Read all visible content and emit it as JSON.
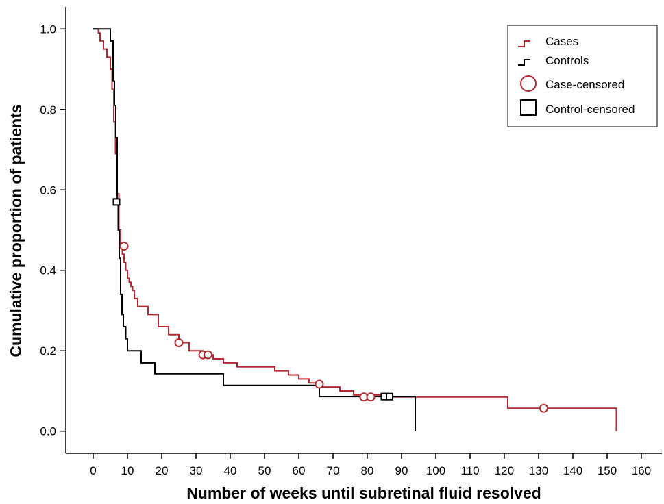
{
  "chart_data": {
    "type": "line",
    "title": "",
    "xlabel": "Number of weeks until subretinal fluid resolved",
    "ylabel": "Cumulative proportion of patients",
    "xlim": [
      -8,
      166
    ],
    "ylim": [
      -0.055,
      1.055
    ],
    "xticks": [
      0,
      10,
      20,
      30,
      40,
      50,
      60,
      70,
      80,
      90,
      100,
      110,
      120,
      130,
      140,
      150,
      160
    ],
    "yticks": [
      0.0,
      0.2,
      0.4,
      0.6,
      0.8,
      1.0
    ],
    "ytick_labels": [
      "0.0",
      "0.2",
      "0.4",
      "0.6",
      "0.8",
      "1.0"
    ],
    "grid": false,
    "legend_position": "top-right",
    "series": [
      {
        "name": "Cases",
        "color": "#b22a30",
        "step": true,
        "x": [
          0,
          1.5,
          2,
          3,
          4,
          5,
          5.5,
          6,
          6.5,
          7,
          7.5,
          8,
          8.5,
          9,
          9.5,
          10,
          10.5,
          11,
          11.5,
          12,
          13,
          16,
          19,
          22,
          25,
          28,
          32,
          35,
          38,
          42,
          48,
          53,
          57,
          60,
          63,
          67,
          72,
          76,
          80,
          83,
          85,
          94,
          121,
          152.7
        ],
        "y": [
          1.0,
          0.99,
          0.97,
          0.95,
          0.93,
          0.9,
          0.85,
          0.77,
          0.69,
          0.59,
          0.5,
          0.46,
          0.44,
          0.42,
          0.4,
          0.38,
          0.37,
          0.36,
          0.35,
          0.33,
          0.31,
          0.29,
          0.26,
          0.24,
          0.22,
          0.2,
          0.19,
          0.18,
          0.17,
          0.16,
          0.16,
          0.15,
          0.14,
          0.13,
          0.12,
          0.11,
          0.1,
          0.09,
          0.09,
          0.09,
          0.085,
          0.085,
          0.057,
          0.0
        ]
      },
      {
        "name": "Controls",
        "color": "#000000",
        "step": true,
        "x": [
          0,
          5,
          5.8,
          6.2,
          6.6,
          7,
          7.3,
          7.6,
          8,
          8.4,
          8.8,
          9.5,
          10,
          14,
          18,
          38,
          66,
          94
        ],
        "y": [
          1.0,
          0.97,
          0.87,
          0.81,
          0.73,
          0.57,
          0.5,
          0.43,
          0.34,
          0.29,
          0.26,
          0.23,
          0.2,
          0.17,
          0.143,
          0.114,
          0.086,
          0.0
        ]
      }
    ],
    "censored": [
      {
        "name": "Case-censored",
        "marker": "circle",
        "color": "#b22a30",
        "x": [
          9,
          25,
          32,
          33.5,
          66,
          79,
          81,
          131.5
        ],
        "y": [
          0.46,
          0.22,
          0.19,
          0.19,
          0.117,
          0.085,
          0.085,
          0.057
        ]
      },
      {
        "name": "Control-censored",
        "marker": "square",
        "color": "#000000",
        "x": [
          6.8,
          85,
          86.5
        ],
        "y": [
          0.57,
          0.086,
          0.086
        ]
      }
    ]
  }
}
